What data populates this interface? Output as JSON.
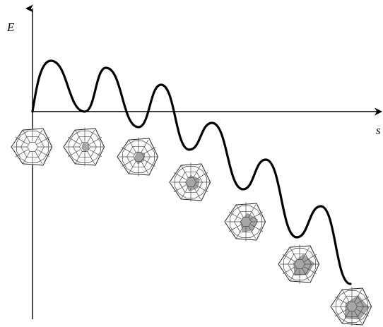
{
  "axes": {
    "y_label": "E",
    "x_label": "s"
  },
  "curve": {
    "description_none": "",
    "minima_count": 7
  },
  "structures": {
    "count": 7,
    "highlight_levels": [
      0,
      1,
      2,
      3,
      4,
      5,
      6
    ],
    "colors": {
      "mesh": "#444444",
      "highlight": "#a6a6a6",
      "curve": "#000000"
    }
  }
}
